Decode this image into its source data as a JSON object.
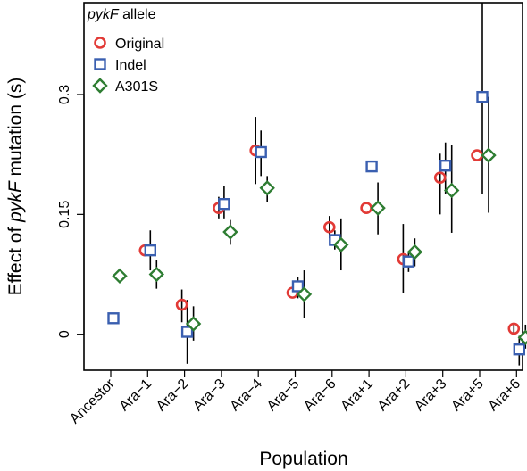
{
  "chart_data": {
    "type": "scatter",
    "xlabel": "Population",
    "ylabel_parts": [
      "Effect of ",
      "pykF",
      " mutation (s)"
    ],
    "categories": [
      "Ancestor",
      "Ara−1",
      "Ara−2",
      "Ara−3",
      "Ara−4",
      "Ara−5",
      "Ara−6",
      "Ara+1",
      "Ara+2",
      "Ara+3",
      "Ara+5",
      "Ara+6"
    ],
    "ylim": [
      -0.045,
      0.415
    ],
    "yticks": [
      0,
      0.15,
      0.3
    ],
    "ytick_labels": [
      "0",
      "0.15",
      "0.3"
    ],
    "legend": {
      "title_italic": "pykF",
      "title_rest": " allele",
      "placement": "top-left"
    },
    "colors": {
      "Original": "#e23a36",
      "Indel": "#3a5fb0",
      "A301S": "#2e7d32",
      "error_bars": "#000000",
      "axis": "#000000"
    },
    "series": [
      {
        "name": "Original",
        "marker": "circle",
        "points": [
          {
            "cat": "Ara−1",
            "y": 0.105,
            "lo": 0.105,
            "hi": 0.105
          },
          {
            "cat": "Ara−2",
            "y": 0.037,
            "lo": 0.015,
            "hi": 0.056
          },
          {
            "cat": "Ara−3",
            "y": 0.158,
            "lo": 0.145,
            "hi": 0.172
          },
          {
            "cat": "Ara−4",
            "y": 0.23,
            "lo": 0.188,
            "hi": 0.272
          },
          {
            "cat": "Ara−5",
            "y": 0.052,
            "lo": 0.052,
            "hi": 0.052
          },
          {
            "cat": "Ara−6",
            "y": 0.134,
            "lo": 0.12,
            "hi": 0.148
          },
          {
            "cat": "Ara+1",
            "y": 0.158,
            "lo": 0.158,
            "hi": 0.158
          },
          {
            "cat": "Ara+2",
            "y": 0.094,
            "lo": 0.052,
            "hi": 0.138
          },
          {
            "cat": "Ara+3",
            "y": 0.196,
            "lo": 0.15,
            "hi": 0.226
          },
          {
            "cat": "Ara+5",
            "y": 0.224,
            "lo": 0.224,
            "hi": 0.224
          },
          {
            "cat": "Ara+6",
            "y": 0.007,
            "lo": 0.0,
            "hi": 0.013
          }
        ]
      },
      {
        "name": "Indel",
        "marker": "square",
        "points": [
          {
            "cat": "Ancestor",
            "y": 0.02,
            "lo": 0.02,
            "hi": 0.02
          },
          {
            "cat": "Ara−1",
            "y": 0.105,
            "lo": 0.08,
            "hi": 0.13
          },
          {
            "cat": "Ara−2",
            "y": 0.003,
            "lo": -0.037,
            "hi": 0.043
          },
          {
            "cat": "Ara−3",
            "y": 0.163,
            "lo": 0.145,
            "hi": 0.185
          },
          {
            "cat": "Ara−4",
            "y": 0.228,
            "lo": 0.198,
            "hi": 0.255
          },
          {
            "cat": "Ara−5",
            "y": 0.06,
            "lo": 0.045,
            "hi": 0.072
          },
          {
            "cat": "Ara−6",
            "y": 0.118,
            "lo": 0.106,
            "hi": 0.13
          },
          {
            "cat": "Ara+1",
            "y": 0.21,
            "lo": 0.21,
            "hi": 0.21
          },
          {
            "cat": "Ara+2",
            "y": 0.091,
            "lo": 0.078,
            "hi": 0.104
          },
          {
            "cat": "Ara+3",
            "y": 0.211,
            "lo": 0.175,
            "hi": 0.24
          },
          {
            "cat": "Ara+5",
            "y": 0.297,
            "lo": 0.175,
            "hi": 0.415
          },
          {
            "cat": "Ara+6",
            "y": -0.019,
            "lo": -0.039,
            "hi": -0.002
          }
        ]
      },
      {
        "name": "A301S",
        "marker": "diamond",
        "points": [
          {
            "cat": "Ancestor",
            "y": 0.073,
            "lo": 0.073,
            "hi": 0.073
          },
          {
            "cat": "Ara−1",
            "y": 0.075,
            "lo": 0.057,
            "hi": 0.093
          },
          {
            "cat": "Ara−2",
            "y": 0.013,
            "lo": -0.008,
            "hi": 0.035
          },
          {
            "cat": "Ara−3",
            "y": 0.128,
            "lo": 0.112,
            "hi": 0.143
          },
          {
            "cat": "Ara−4",
            "y": 0.183,
            "lo": 0.166,
            "hi": 0.198
          },
          {
            "cat": "Ara−5",
            "y": 0.05,
            "lo": 0.02,
            "hi": 0.08
          },
          {
            "cat": "Ara−6",
            "y": 0.112,
            "lo": 0.08,
            "hi": 0.145
          },
          {
            "cat": "Ara+1",
            "y": 0.158,
            "lo": 0.125,
            "hi": 0.19
          },
          {
            "cat": "Ara+2",
            "y": 0.103,
            "lo": 0.085,
            "hi": 0.12
          },
          {
            "cat": "Ara+3",
            "y": 0.18,
            "lo": 0.127,
            "hi": 0.237
          },
          {
            "cat": "Ara+5",
            "y": 0.224,
            "lo": 0.152,
            "hi": 0.297
          },
          {
            "cat": "Ara+6",
            "y": -0.004,
            "lo": -0.018,
            "hi": 0.012
          }
        ]
      }
    ]
  }
}
